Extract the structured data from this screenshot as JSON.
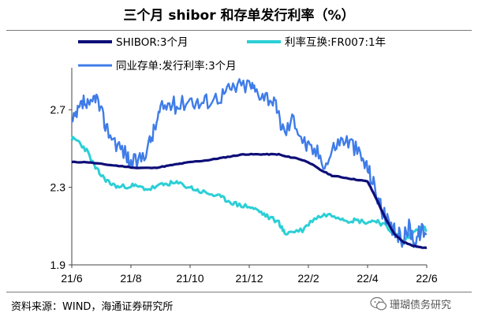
{
  "chart_data": {
    "type": "line",
    "title": "三个月 shibor 和存单发行利率（%）",
    "xlabel": "",
    "ylabel": "",
    "x_tick_labels": [
      "21/6",
      "21/8",
      "21/10",
      "21/12",
      "22/2",
      "22/4",
      "22/6"
    ],
    "x_tick_months": [
      0,
      2,
      4,
      6,
      8,
      10,
      12
    ],
    "x_range": [
      0,
      12
    ],
    "ylim": [
      1.9,
      2.9
    ],
    "y_ticks": [
      1.9,
      2.3,
      2.7
    ],
    "y_tick_labels": [
      "1.9",
      "2.3",
      "2.7"
    ],
    "grid": false,
    "legend_position": "top",
    "series": [
      {
        "name": "SHIBOR:3个月",
        "color": "#0e0e78",
        "x": [
          0,
          0.5,
          1,
          1.6,
          2.2,
          2.8,
          3.2,
          3.6,
          4.0,
          4.6,
          5.0,
          5.4,
          5.8,
          6.2,
          6.6,
          7.0,
          7.2,
          7.6,
          8.0,
          8.4,
          8.8,
          9.2,
          9.6,
          10.0,
          10.3,
          10.6,
          10.9,
          11.2,
          11.5,
          11.8,
          12.0
        ],
        "y": [
          2.43,
          2.43,
          2.42,
          2.41,
          2.4,
          2.4,
          2.41,
          2.42,
          2.43,
          2.44,
          2.45,
          2.46,
          2.47,
          2.47,
          2.47,
          2.47,
          2.46,
          2.45,
          2.43,
          2.39,
          2.36,
          2.35,
          2.34,
          2.33,
          2.24,
          2.14,
          2.06,
          2.02,
          2.0,
          1.99,
          1.99
        ]
      },
      {
        "name": "利率互换:FR007:1年",
        "color": "#2ccfd6",
        "x": [
          0,
          0.2,
          0.5,
          0.8,
          1.0,
          1.3,
          1.6,
          2.0,
          2.3,
          2.6,
          3.0,
          3.3,
          3.6,
          4.0,
          4.3,
          4.6,
          5.0,
          5.3,
          5.6,
          6.0,
          6.3,
          6.6,
          7.0,
          7.2,
          7.4,
          7.8,
          8.2,
          8.6,
          9.0,
          9.3,
          9.6,
          10.0,
          10.3,
          10.6,
          10.9,
          11.2,
          11.5,
          11.8,
          12.0
        ],
        "y": [
          2.55,
          2.54,
          2.49,
          2.4,
          2.36,
          2.32,
          2.3,
          2.31,
          2.3,
          2.29,
          2.31,
          2.32,
          2.32,
          2.3,
          2.28,
          2.27,
          2.25,
          2.23,
          2.21,
          2.2,
          2.18,
          2.15,
          2.12,
          2.06,
          2.07,
          2.08,
          2.14,
          2.16,
          2.15,
          2.13,
          2.13,
          2.12,
          2.13,
          2.1,
          2.06,
          2.02,
          2.06,
          2.1,
          2.08
        ]
      },
      {
        "name": "同业存单:发行利率:3个月",
        "color": "#3f7ce8",
        "x": [
          0,
          0.2,
          0.4,
          0.6,
          0.8,
          1.0,
          1.2,
          1.5,
          1.8,
          2.0,
          2.3,
          2.6,
          2.8,
          3.0,
          3.3,
          3.6,
          4.0,
          4.3,
          4.6,
          5.0,
          5.3,
          5.6,
          6.0,
          6.2,
          6.5,
          6.8,
          7.0,
          7.2,
          7.5,
          7.8,
          8.0,
          8.3,
          8.6,
          8.9,
          9.2,
          9.5,
          9.8,
          10.0,
          10.2,
          10.4,
          10.6,
          10.8,
          11.0,
          11.2,
          11.4,
          11.6,
          11.8,
          12.0
        ],
        "y": [
          2.62,
          2.68,
          2.74,
          2.7,
          2.78,
          2.68,
          2.6,
          2.53,
          2.48,
          2.42,
          2.44,
          2.52,
          2.6,
          2.7,
          2.73,
          2.72,
          2.76,
          2.73,
          2.75,
          2.77,
          2.8,
          2.82,
          2.83,
          2.8,
          2.78,
          2.75,
          2.66,
          2.58,
          2.66,
          2.55,
          2.5,
          2.48,
          2.42,
          2.52,
          2.55,
          2.52,
          2.45,
          2.4,
          2.32,
          2.22,
          2.14,
          2.08,
          2.06,
          2.03,
          2.1,
          2.02,
          2.08,
          2.06
        ]
      }
    ]
  },
  "footer": {
    "source": "资料来源：WIND，海通证券研究所",
    "watermark": "珊瑚债务研究"
  }
}
